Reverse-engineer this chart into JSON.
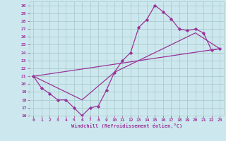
{
  "title": "",
  "xlabel": "Windchill (Refroidissement éolien,°C)",
  "ylabel": "",
  "bg_color": "#cce8ee",
  "grid_color": "#aacccc",
  "line_color": "#993399",
  "xlim": [
    -0.5,
    23.5
  ],
  "ylim": [
    16,
    30.5
  ],
  "xticks": [
    0,
    1,
    2,
    3,
    4,
    5,
    6,
    7,
    8,
    9,
    10,
    11,
    12,
    13,
    14,
    15,
    16,
    17,
    18,
    19,
    20,
    21,
    22,
    23
  ],
  "yticks": [
    16,
    17,
    18,
    19,
    20,
    21,
    22,
    23,
    24,
    25,
    26,
    27,
    28,
    29,
    30
  ],
  "series1_x": [
    0,
    1,
    2,
    3,
    4,
    5,
    6,
    7,
    8,
    9,
    10,
    11,
    12,
    13,
    14,
    15,
    16,
    17,
    18,
    19,
    20,
    21,
    22,
    23
  ],
  "series1_y": [
    21.0,
    19.5,
    18.8,
    18.0,
    18.0,
    17.0,
    16.0,
    17.0,
    17.2,
    19.2,
    21.5,
    23.0,
    24.0,
    27.2,
    28.2,
    30.0,
    29.2,
    28.3,
    27.0,
    26.8,
    27.0,
    26.5,
    24.3,
    24.5
  ],
  "series2_x": [
    0,
    3,
    6,
    10,
    15,
    20,
    23
  ],
  "series2_y": [
    21.0,
    19.5,
    18.0,
    21.5,
    24.0,
    26.5,
    24.5
  ],
  "series3_x": [
    0,
    23
  ],
  "series3_y": [
    21.0,
    24.5
  ]
}
